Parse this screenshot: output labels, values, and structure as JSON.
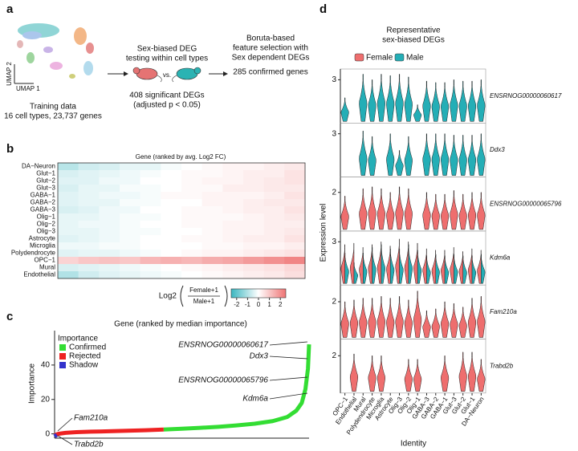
{
  "panel_labels": [
    "a",
    "b",
    "c",
    "d"
  ],
  "panel_a": {
    "umap_x": "UMAP 1",
    "umap_y": "UMAP 2",
    "training": [
      "Training data",
      "16 cell types, 23,737 genes"
    ],
    "deg_testing": [
      "Sex-biased DEG",
      "testing within cell types"
    ],
    "vs": "vs.",
    "deg_result": [
      "408 significant DEGs",
      "(adjusted p < 0.05)"
    ],
    "boruta": [
      "Boruta-based",
      "feature selection with",
      "Sex dependent DEGs"
    ],
    "boruta_result": "285 confirmed genes"
  },
  "chart_data": [
    {
      "type": "heatmap",
      "title": "Gene (ranked by avg. Log2 FC)",
      "rows": [
        "DA−Neuron",
        "Glut−1",
        "Glut−2",
        "Glut−3",
        "GABA−1",
        "GABA−2",
        "GABA−3",
        "Olig−1",
        "Olig−2",
        "Olig−3",
        "Astrocyte",
        "Microglia",
        "Polydendrocyte",
        "OPC−1",
        "Mural",
        "Endothelial"
      ],
      "values": [
        [
          -0.9,
          -0.6,
          -0.5,
          -0.3,
          -0.3,
          -0.1,
          0.0,
          0.1,
          0.2,
          0.2,
          0.3,
          0.4
        ],
        [
          -0.5,
          -0.4,
          -0.3,
          -0.2,
          -0.1,
          0.0,
          0.1,
          0.1,
          0.2,
          0.3,
          0.3,
          0.5
        ],
        [
          -0.4,
          -0.4,
          -0.2,
          -0.2,
          0.0,
          0.0,
          0.1,
          0.2,
          0.2,
          0.3,
          0.4,
          0.5
        ],
        [
          -0.5,
          -0.3,
          -0.3,
          -0.1,
          -0.1,
          0.0,
          0.1,
          0.1,
          0.3,
          0.3,
          0.4,
          0.4
        ],
        [
          -0.4,
          -0.3,
          -0.2,
          -0.2,
          -0.1,
          0.1,
          0.1,
          0.2,
          0.2,
          0.2,
          0.3,
          0.5
        ],
        [
          -0.4,
          -0.3,
          -0.3,
          -0.1,
          -0.1,
          0.0,
          0.0,
          0.2,
          0.2,
          0.3,
          0.4,
          0.4
        ],
        [
          -0.5,
          -0.4,
          -0.2,
          -0.2,
          0.0,
          0.0,
          0.1,
          0.1,
          0.2,
          0.3,
          0.3,
          0.5
        ],
        [
          -0.3,
          -0.3,
          -0.2,
          -0.1,
          -0.1,
          0.0,
          0.1,
          0.1,
          0.1,
          0.2,
          0.3,
          0.4
        ],
        [
          -0.3,
          -0.2,
          -0.2,
          -0.1,
          0.0,
          0.0,
          0.1,
          0.1,
          0.2,
          0.2,
          0.3,
          0.3
        ],
        [
          -0.3,
          -0.3,
          -0.2,
          -0.1,
          -0.1,
          0.0,
          0.0,
          0.1,
          0.2,
          0.2,
          0.3,
          0.4
        ],
        [
          -0.4,
          -0.3,
          -0.2,
          -0.1,
          0.0,
          0.0,
          0.1,
          0.1,
          0.2,
          0.3,
          0.3,
          0.5
        ],
        [
          -0.2,
          -0.2,
          -0.1,
          -0.1,
          0.0,
          0.0,
          0.0,
          0.1,
          0.1,
          0.2,
          0.2,
          0.3
        ],
        [
          -0.4,
          -0.3,
          -0.3,
          -0.2,
          -0.1,
          0.0,
          0.1,
          0.2,
          0.2,
          0.3,
          0.4,
          0.5
        ],
        [
          0.8,
          1.0,
          1.1,
          1.0,
          1.3,
          1.4,
          1.3,
          1.5,
          1.6,
          1.8,
          2.0,
          2.2
        ],
        [
          -0.5,
          -0.4,
          -0.3,
          -0.2,
          -0.1,
          0.0,
          0.1,
          0.2,
          0.3,
          0.4,
          0.5,
          0.7
        ],
        [
          -1.0,
          -0.6,
          -0.4,
          -0.3,
          -0.2,
          -0.1,
          0.0,
          0.1,
          0.2,
          0.3,
          0.4,
          0.6
        ]
      ],
      "colorbar": {
        "label": "Log2",
        "numerator": "Female+1",
        "denominator": "Male+1",
        "lim": [
          -2.5,
          2.5
        ],
        "ticks": [
          -2,
          -1,
          0,
          1,
          2
        ],
        "colors": [
          "#3bb6c0",
          "#ffffff",
          "#ef7474"
        ]
      }
    },
    {
      "type": "line",
      "title": "Gene (ranked by median importance)",
      "ylabel": "Importance",
      "xlim": [
        0,
        700
      ],
      "ylim": [
        -2.5,
        60
      ],
      "yticks": [
        0,
        20,
        40
      ],
      "legend_title": "Importance",
      "series": [
        {
          "name": "Confirmed",
          "color": "#33dd33",
          "x": [
            300,
            350,
            400,
            450,
            500,
            550,
            600,
            640,
            665,
            680,
            690,
            697,
            700
          ],
          "values": [
            2.5,
            3.0,
            3.5,
            4.1,
            4.9,
            5.9,
            7.4,
            9.8,
            13.5,
            18.0,
            26.0,
            38.0,
            52.0
          ]
        },
        {
          "name": "Rejected",
          "color": "#ee2222",
          "x": [
            0,
            10,
            30,
            60,
            100,
            150,
            200,
            250,
            300
          ],
          "values": [
            -0.8,
            0.0,
            0.6,
            1.0,
            1.3,
            1.5,
            1.8,
            2.1,
            2.5
          ]
        },
        {
          "name": "Shadow",
          "color": "#3333cc",
          "x": [
            0,
            3,
            6
          ],
          "values": [
            -1.5,
            -1.0,
            -0.6
          ]
        }
      ],
      "annotations": [
        "ENSRNOG00000060617",
        "Ddx3",
        "ENSRNOG00000065796",
        "Kdm6a",
        "Fam210a",
        "Trabd2b"
      ]
    },
    {
      "type": "violin",
      "title": [
        "Representative",
        "sex-biased DEGs"
      ],
      "xlabel": "Identity",
      "ylabel": "Expression level",
      "categories": [
        "OPC−1",
        "Endothelial",
        "Mural",
        "Polydendrocyte",
        "Microglia",
        "Astrocyte",
        "Olig−3",
        "Olig−2",
        "Olig−1",
        "GABA−3",
        "GABA−2",
        "GABA−1",
        "Glut−3",
        "Glut−2",
        "Glut−1",
        "DA−Neuron"
      ],
      "legend": [
        {
          "name": "Female",
          "color": "#ee6e6e"
        },
        {
          "name": "Male",
          "color": "#24aeb6"
        }
      ],
      "panels": [
        {
          "gene": "ENSRNOG00000060617",
          "ylim": [
            0,
            3.6
          ],
          "yticks": [
            3
          ],
          "female": [
            null,
            null,
            null,
            null,
            null,
            null,
            null,
            null,
            null,
            null,
            null,
            null,
            null,
            null,
            null,
            null
          ],
          "male": [
            1.7,
            null,
            3.4,
            3.0,
            3.4,
            3.3,
            3.4,
            3.2,
            1.2,
            2.9,
            2.8,
            2.8,
            3.0,
            2.9,
            2.9,
            3.0
          ]
        },
        {
          "gene": "Ddx3",
          "ylim": [
            0,
            3.6
          ],
          "yticks": [
            3
          ],
          "female": [
            null,
            null,
            null,
            null,
            null,
            null,
            null,
            null,
            null,
            null,
            null,
            null,
            null,
            null,
            null,
            null
          ],
          "male": [
            null,
            null,
            3.2,
            2.8,
            null,
            3.0,
            1.8,
            2.8,
            null,
            3.0,
            3.0,
            3.0,
            2.9,
            2.9,
            2.9,
            3.0
          ]
        },
        {
          "gene": "ENSRNOG00000065796",
          "ylim": [
            0,
            2.7
          ],
          "yticks": [
            2
          ],
          "female": [
            1.8,
            null,
            2.2,
            2.3,
            2.2,
            2.0,
            2.3,
            2.2,
            null,
            2.0,
            1.9,
            1.9,
            2.1,
            1.9,
            2.0,
            2.0
          ],
          "male": [
            null,
            null,
            null,
            null,
            null,
            null,
            null,
            null,
            null,
            null,
            null,
            null,
            null,
            null,
            null,
            null
          ]
        },
        {
          "gene": "Kdm6a",
          "ylim": [
            0,
            3.6
          ],
          "yticks": [
            3
          ],
          "female": [
            2.8,
            2.9,
            2.6,
            2.8,
            3.0,
            2.7,
            3.2,
            3.0,
            2.9,
            2.5,
            2.4,
            2.4,
            2.6,
            2.3,
            2.5,
            2.4
          ],
          "male": [
            2.2,
            1.5,
            2.2,
            2.6,
            2.8,
            2.5,
            2.5,
            2.8,
            2.4,
            2.0,
            2.1,
            2.0,
            2.1,
            2.0,
            2.0,
            2.1
          ]
        },
        {
          "gene": "Fam210a",
          "ylim": [
            0,
            2.8
          ],
          "yticks": [
            2
          ],
          "female": [
            2.0,
            2.1,
            2.2,
            2.2,
            2.3,
            2.2,
            2.3,
            2.1,
            2.6,
            1.5,
            1.6,
            2.0,
            1.9,
            1.7,
            2.2,
            2.3
          ],
          "male": [
            null,
            null,
            null,
            null,
            null,
            null,
            null,
            null,
            null,
            null,
            null,
            null,
            null,
            null,
            null,
            null
          ]
        },
        {
          "gene": "Trabd2b",
          "ylim": [
            0,
            2.8
          ],
          "yticks": [
            2
          ],
          "female": [
            null,
            2.1,
            null,
            2.0,
            2.0,
            null,
            null,
            1.8,
            1.8,
            null,
            null,
            2.0,
            null,
            2.2,
            2.2,
            1.8
          ],
          "male": [
            null,
            null,
            null,
            null,
            null,
            null,
            null,
            null,
            null,
            null,
            null,
            null,
            null,
            null,
            null,
            null
          ]
        }
      ]
    }
  ]
}
